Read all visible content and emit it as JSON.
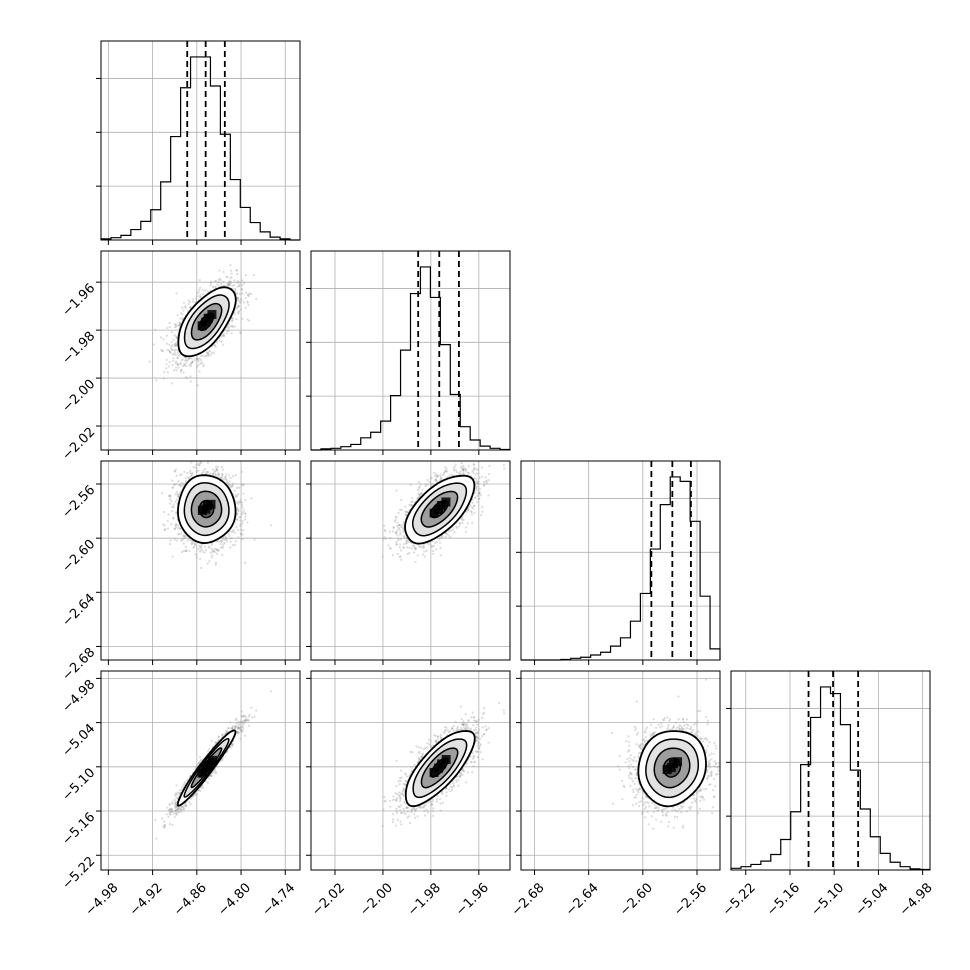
{
  "chart_data": {
    "type": "corner",
    "title": "",
    "colors": {
      "histogram": "#000000",
      "scatter": "#9a9a9a",
      "grid": "#b0b0b0",
      "contour_fill_light": "#e2e2e2",
      "contour_fill_mid": "#9e9e9e",
      "contour_fill_dark": "#5a5a5a",
      "density_peak": "#000000"
    },
    "grid": true,
    "quantile_lines": "dashed",
    "parameters": [
      {
        "axis_range": [
          -4.99,
          -4.72
        ],
        "ticks": [
          -4.98,
          -4.92,
          -4.86,
          -4.8,
          -4.74
        ],
        "tick_labels": [
          "−4.98",
          "−4.92",
          "−4.86",
          "−4.80",
          "−4.74"
        ],
        "quantiles": [
          -4.873,
          -4.848,
          -4.822
        ],
        "mean": -4.847,
        "sd": 0.0195,
        "histogram": {
          "edges_from": -4.99,
          "edges_to": -4.72,
          "bins": 20,
          "counts": [
            2,
            4,
            8,
            18,
            32,
            52,
            100,
            178,
            262,
            315,
            315,
            265,
            182,
            104,
            56,
            30,
            14,
            5,
            2,
            0
          ]
        }
      },
      {
        "axis_range": [
          -2.03,
          -1.947
        ],
        "ticks": [
          -2.02,
          -2.0,
          -1.98,
          -1.96
        ],
        "tick_labels": [
          "−2.02",
          "−2.00",
          "−1.98",
          "−1.96"
        ],
        "quantiles": [
          -1.9853,
          -1.9765,
          -1.9683
        ],
        "mean": -1.9765,
        "sd": 0.0072,
        "histogram": {
          "edges_from": -2.03,
          "edges_to": -1.947,
          "bins": 20,
          "counts": [
            0,
            2,
            3,
            6,
            10,
            22,
            32,
            52,
            98,
            180,
            282,
            330,
            275,
            190,
            100,
            42,
            18,
            7,
            3,
            1
          ]
        }
      },
      {
        "axis_range": [
          -2.69,
          -2.543
        ],
        "ticks": [
          -2.68,
          -2.64,
          -2.6,
          -2.56
        ],
        "tick_labels": [
          "−2.68",
          "−2.64",
          "−2.60",
          "−2.56"
        ],
        "quantiles": [
          -2.5937,
          -2.5782,
          -2.5645
        ],
        "mean": -2.5785,
        "sd": 0.0125,
        "histogram": {
          "edges_from": -2.69,
          "edges_to": -2.543,
          "bins": 20,
          "counts": [
            0,
            0,
            0,
            0,
            1,
            3,
            5,
            9,
            14,
            25,
            40,
            70,
            120,
            200,
            280,
            330,
            322,
            250,
            115,
            20
          ]
        }
      },
      {
        "axis_range": [
          -5.24,
          -4.97
        ],
        "ticks": [
          -5.22,
          -5.16,
          -5.1,
          -5.04,
          -4.98
        ],
        "tick_labels": [
          "−5.22",
          "−5.16",
          "−5.10",
          "−5.04",
          "−4.98"
        ],
        "quantiles": [
          -5.1348,
          -5.1015,
          -5.0675
        ],
        "mean": -5.101,
        "sd": 0.0255,
        "histogram": {
          "edges_from": -5.24,
          "edges_to": -4.97,
          "bins": 20,
          "counts": [
            3,
            6,
            10,
            16,
            28,
            55,
            105,
            190,
            275,
            330,
            318,
            262,
            180,
            110,
            60,
            30,
            14,
            6,
            2,
            1
          ]
        }
      }
    ],
    "pairs": [
      {
        "x_param": 0,
        "y_param": 1,
        "correlation": 0.62
      },
      {
        "x_param": 0,
        "y_param": 2,
        "correlation": 0.0
      },
      {
        "x_param": 1,
        "y_param": 2,
        "correlation": 0.62
      },
      {
        "x_param": 0,
        "y_param": 3,
        "correlation": 0.96
      },
      {
        "x_param": 1,
        "y_param": 3,
        "correlation": 0.75
      },
      {
        "x_param": 2,
        "y_param": 3,
        "correlation": 0.1
      }
    ]
  }
}
